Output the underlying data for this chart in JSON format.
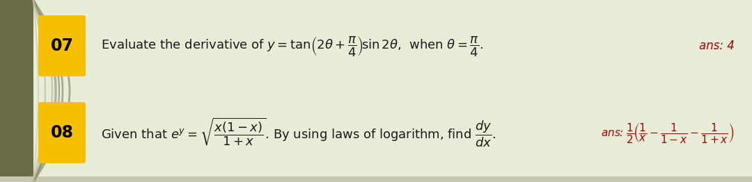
{
  "bg_color": "#e8edd8",
  "left_stripe_color": "#6b6b4a",
  "curve_colors": [
    "#9a9878",
    "#8a8868",
    "#7a7858",
    "#aaa888"
  ],
  "label_bg": "#f5c000",
  "label_text_color": "#000000",
  "main_text_color": "#1a1a1a",
  "ans_color": "#aa0000",
  "bottom_bar_color": "#c8c8b0",
  "label1": "07",
  "label2": "08",
  "figsize": [
    10.8,
    2.62
  ],
  "dpi": 100
}
